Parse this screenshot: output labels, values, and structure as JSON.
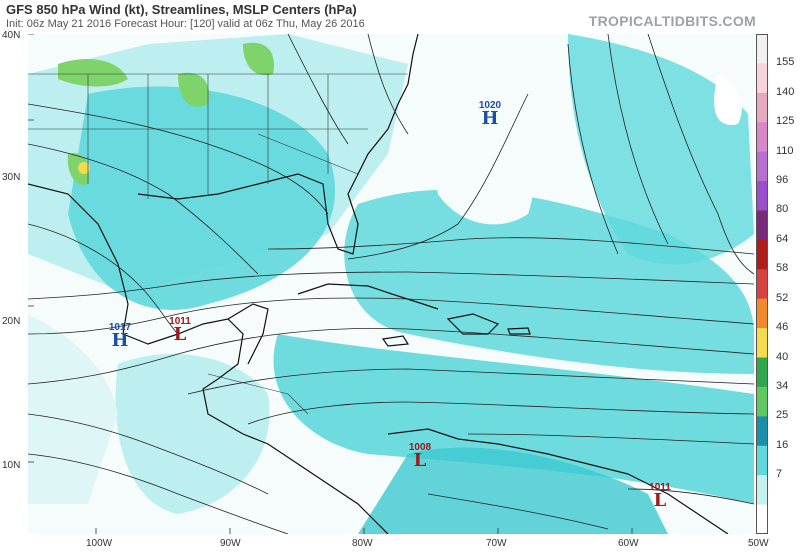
{
  "header": {
    "title": "GFS 850 hPa Wind (kt), Streamlines, MSLP Centers (hPa)",
    "subtitle": "Init: 06z May 21 2016   Forecast Hour: [120]   valid at 06z Thu, May 26 2016",
    "site": "TROPICALTIDBITS.COM"
  },
  "axes": {
    "lat_labels": [
      "40N",
      "30N",
      "20N",
      "10N"
    ],
    "lon_labels": [
      "100W",
      "90W",
      "80W",
      "70W",
      "60W",
      "50W"
    ]
  },
  "colorbar": {
    "labels": [
      "155",
      "140",
      "125",
      "110",
      "96",
      "80",
      "64",
      "58",
      "52",
      "46",
      "40",
      "34",
      "25",
      "16",
      "7"
    ],
    "colors": [
      "#f0f0f0",
      "#f7d3dc",
      "#e8a9c0",
      "#d888c8",
      "#b86fd0",
      "#9c4fcc",
      "#7a2a7a",
      "#b01c1c",
      "#d94040",
      "#f08a2c",
      "#f4dc4c",
      "#2ea84a",
      "#5fc860",
      "#1a8fa8",
      "#5fd8dc",
      "#c4f0ef",
      "#ffffff"
    ]
  },
  "pressure_centers": [
    {
      "type": "H",
      "value": "1020",
      "color": "#1a4fa8"
    },
    {
      "type": "H",
      "value": "1017",
      "color": "#1a4fa8"
    },
    {
      "type": "L",
      "value": "1011",
      "color": "#a01818"
    },
    {
      "type": "L",
      "value": "1008",
      "color": "#a01818"
    },
    {
      "type": "L",
      "value": "1011",
      "color": "#a01818"
    }
  ],
  "colors": {
    "wind_light": "#a8ece8",
    "wind_mid": "#5fd8dc",
    "wind_strong": "#3cc8d0",
    "land_green": "#7ed46a",
    "streamline": "#222222",
    "coast": "#111111"
  }
}
